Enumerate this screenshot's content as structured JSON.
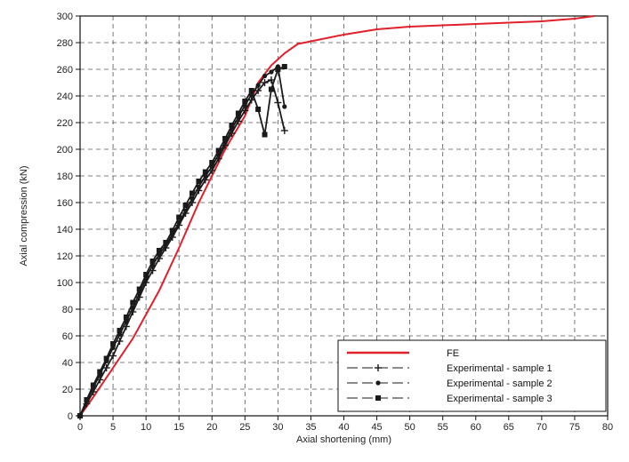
{
  "chart_data": {
    "type": "line",
    "title": "",
    "xlabel": "Axial shortening (mm)",
    "ylabel": "Axial compression (kN)",
    "xlim": [
      0,
      80
    ],
    "ylim": [
      0,
      300
    ],
    "xticks": [
      0,
      5,
      10,
      15,
      20,
      25,
      30,
      35,
      40,
      45,
      50,
      55,
      60,
      65,
      70,
      75,
      80
    ],
    "yticks": [
      0,
      20,
      40,
      60,
      80,
      100,
      120,
      140,
      160,
      180,
      200,
      220,
      240,
      260,
      280,
      300
    ],
    "grid": true,
    "legend_position": "bottom-right",
    "series": [
      {
        "name": "FE",
        "color": "#e0202a",
        "marker": "none",
        "x": [
          0,
          2,
          5,
          8,
          10,
          12,
          15,
          18,
          20,
          22,
          25,
          27,
          29,
          31,
          33,
          35,
          40,
          45,
          50,
          55,
          60,
          65,
          70,
          75,
          78
        ],
        "y": [
          0,
          14,
          36,
          58,
          76,
          94,
          126,
          160,
          180,
          200,
          225,
          250,
          263,
          272,
          279,
          281,
          286,
          290,
          292,
          293,
          294,
          295,
          296,
          298,
          300
        ]
      },
      {
        "name": "Experimental - sample 1",
        "color": "#1a1a1a",
        "marker": "plus",
        "x": [
          0,
          1,
          2,
          3,
          4,
          5,
          6,
          7,
          8,
          9,
          10,
          11,
          12,
          13,
          14,
          15,
          16,
          17,
          18,
          19,
          20,
          21,
          22,
          23,
          24,
          25,
          26,
          27,
          28,
          29,
          30,
          31
        ],
        "y": [
          0,
          9,
          18,
          27,
          36,
          45,
          56,
          67,
          78,
          89,
          100,
          109,
          118,
          126,
          134,
          143,
          152,
          160,
          169,
          177,
          184,
          193,
          203,
          212,
          221,
          229,
          237,
          244,
          250,
          252,
          235,
          214
        ]
      },
      {
        "name": "Experimental - sample 2",
        "color": "#1a1a1a",
        "marker": "dot",
        "x": [
          0,
          1,
          2,
          3,
          4,
          5,
          6,
          7,
          8,
          9,
          10,
          11,
          12,
          13,
          14,
          15,
          16,
          17,
          18,
          19,
          20,
          21,
          22,
          23,
          24,
          25,
          26,
          27,
          28,
          29,
          30,
          31
        ],
        "y": [
          0,
          11,
          21,
          31,
          41,
          51,
          61,
          71,
          81,
          92,
          103,
          113,
          121,
          128,
          136,
          145,
          154,
          163,
          172,
          180,
          187,
          196,
          205,
          215,
          224,
          233,
          241,
          248,
          255,
          258,
          262,
          232
        ]
      },
      {
        "name": "Experimental - sample 3",
        "color": "#1a1a1a",
        "marker": "square",
        "x": [
          0,
          1,
          2,
          3,
          4,
          5,
          6,
          7,
          8,
          9,
          10,
          11,
          12,
          13,
          14,
          15,
          16,
          17,
          18,
          19,
          20,
          21,
          22,
          23,
          24,
          25,
          26,
          27,
          28,
          29,
          30,
          31
        ],
        "y": [
          0,
          12,
          23,
          33,
          43,
          54,
          64,
          74,
          85,
          95,
          106,
          116,
          124,
          130,
          139,
          149,
          158,
          167,
          176,
          183,
          190,
          199,
          208,
          218,
          227,
          236,
          244,
          230,
          211,
          245,
          260,
          262
        ]
      }
    ]
  }
}
